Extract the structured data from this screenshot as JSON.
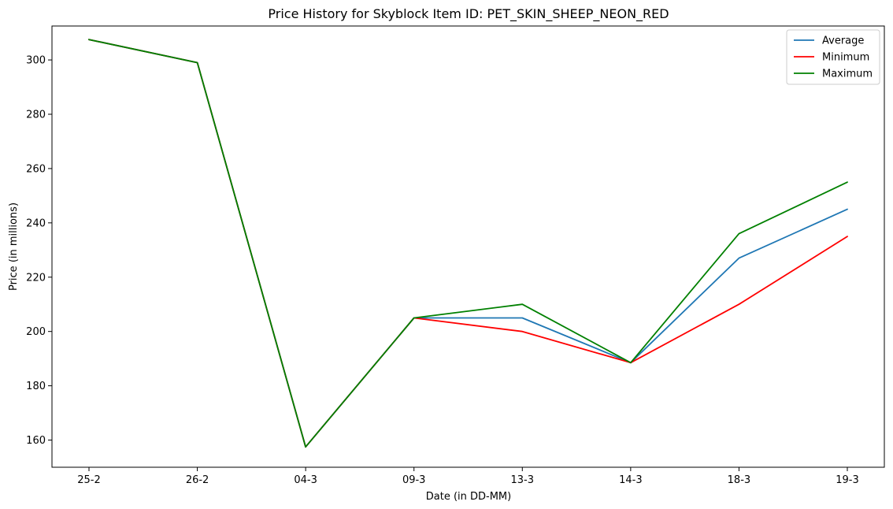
{
  "chart_data": {
    "type": "line",
    "title": "Price History for Skyblock Item ID: PET_SKIN_SHEEP_NEON_RED",
    "xlabel": "Date (in DD-MM)",
    "ylabel": "Price (in millions)",
    "categories": [
      "25-2",
      "26-2",
      "04-3",
      "09-3",
      "13-3",
      "14-3",
      "18-3",
      "19-3"
    ],
    "ylim": [
      150,
      312.5
    ],
    "yticks": [
      160,
      180,
      200,
      220,
      240,
      260,
      280,
      300
    ],
    "grid": false,
    "legend_position": "top-right",
    "series": [
      {
        "name": "Average",
        "color": "#1f77b4",
        "values": [
          307.5,
          299,
          157.5,
          205,
          205,
          188.5,
          227,
          245
        ]
      },
      {
        "name": "Minimum",
        "color": "#ff0000",
        "values": [
          307.5,
          299,
          157.5,
          205,
          200,
          188.5,
          210,
          235
        ]
      },
      {
        "name": "Maximum",
        "color": "#008000",
        "values": [
          307.5,
          299,
          157.5,
          205,
          210,
          188.5,
          236,
          255
        ]
      }
    ]
  }
}
